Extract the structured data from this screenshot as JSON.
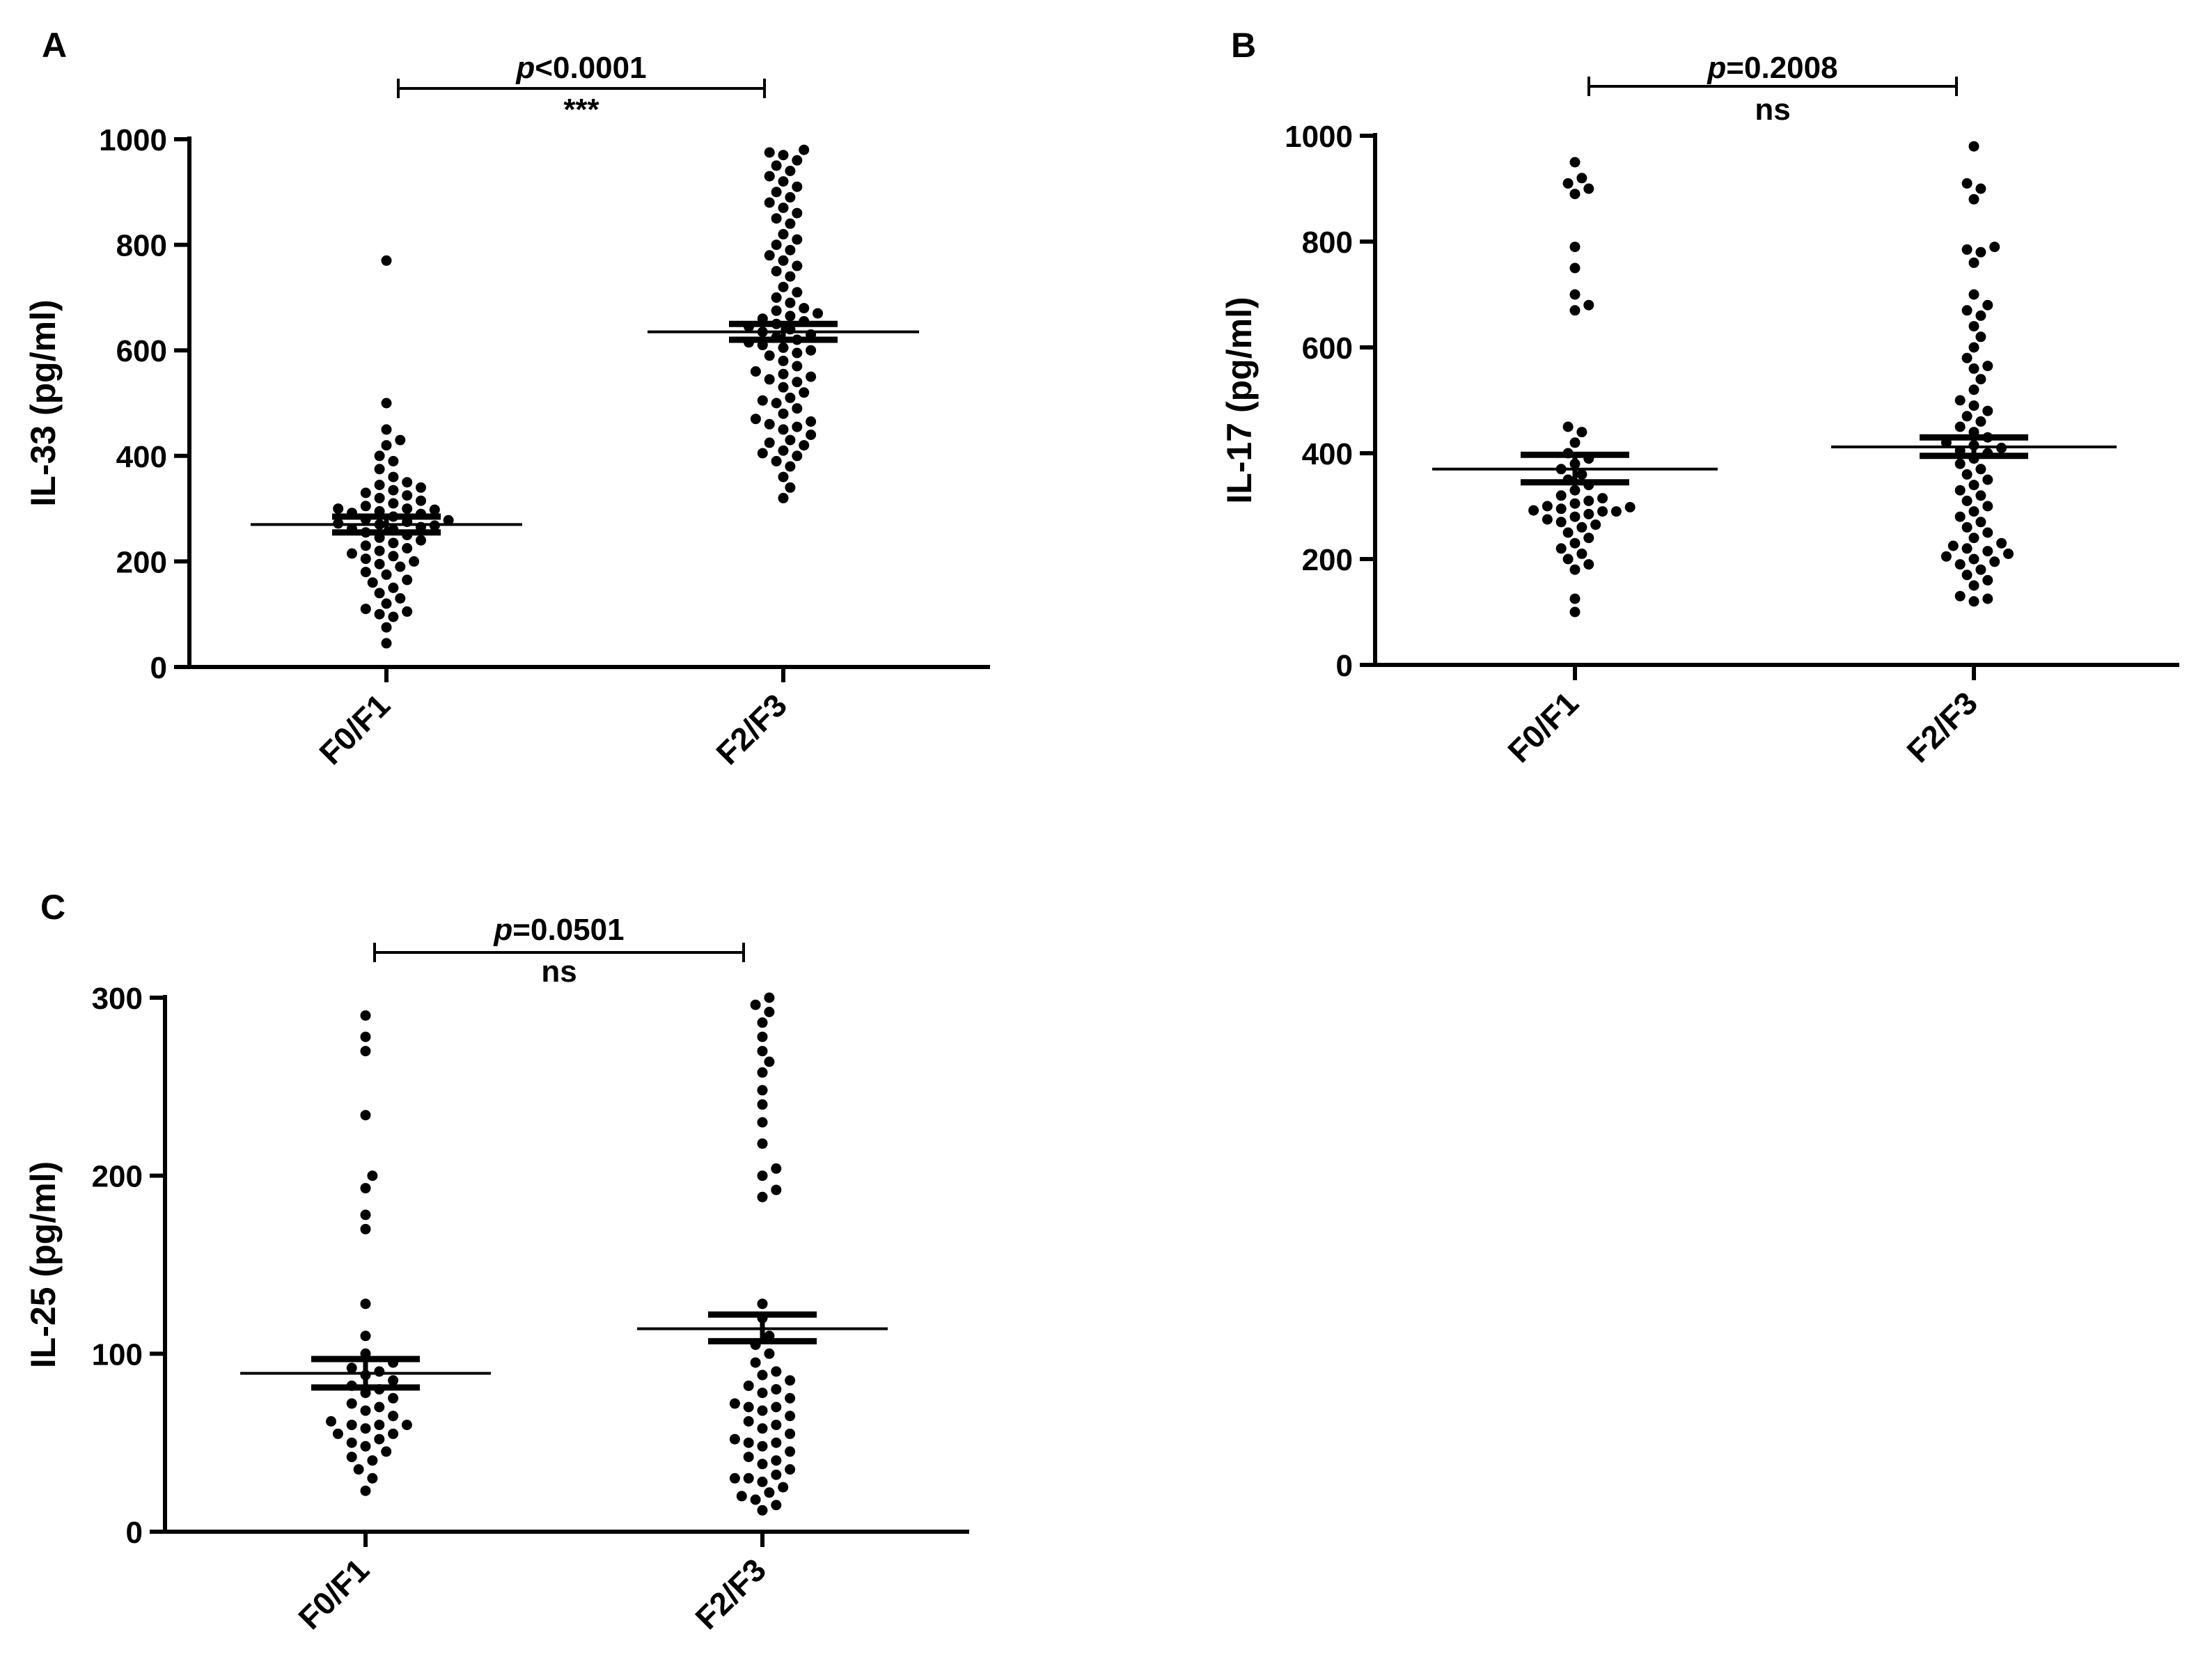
{
  "colors": {
    "ink": "#000000",
    "background": "#ffffff"
  },
  "chart_data": [
    {
      "panel": "A",
      "type": "scatter",
      "subtype": "dot-plot-with-mean-sem",
      "ylabel": "IL-33 (pg/ml)",
      "ylim": [
        0,
        1000
      ],
      "yticks": [
        0,
        200,
        400,
        600,
        800,
        1000
      ],
      "categories": [
        "F0/F1",
        "F2/F3"
      ],
      "series": [
        {
          "name": "F0/F1",
          "mean": 270,
          "sem_low": 255,
          "sem_high": 285,
          "values": [
            45,
            75,
            95,
            100,
            105,
            110,
            120,
            130,
            140,
            150,
            160,
            165,
            175,
            180,
            190,
            195,
            200,
            205,
            210,
            215,
            220,
            225,
            230,
            235,
            240,
            245,
            250,
            255,
            260,
            262,
            265,
            268,
            270,
            272,
            275,
            278,
            280,
            285,
            290,
            292,
            295,
            298,
            300,
            300,
            305,
            310,
            315,
            320,
            325,
            330,
            335,
            340,
            345,
            350,
            360,
            375,
            390,
            400,
            420,
            430,
            450,
            500,
            770
          ]
        },
        {
          "name": "F2/F3",
          "mean": 635,
          "sem_low": 620,
          "sem_high": 650,
          "values": [
            320,
            340,
            360,
            380,
            390,
            400,
            405,
            410,
            420,
            425,
            430,
            440,
            450,
            455,
            460,
            465,
            470,
            480,
            490,
            500,
            505,
            510,
            520,
            530,
            540,
            545,
            550,
            555,
            560,
            570,
            580,
            590,
            595,
            600,
            605,
            610,
            615,
            620,
            625,
            630,
            635,
            640,
            645,
            650,
            655,
            660,
            665,
            670,
            675,
            680,
            690,
            700,
            710,
            720,
            740,
            750,
            760,
            770,
            780,
            790,
            800,
            810,
            820,
            840,
            850,
            860,
            870,
            880,
            890,
            900,
            910,
            920,
            930,
            940,
            950,
            960,
            970,
            975,
            980
          ]
        }
      ],
      "comparison": {
        "p_label": "p",
        "p_value": "<0.0001",
        "significance": "***"
      }
    },
    {
      "panel": "B",
      "type": "scatter",
      "subtype": "dot-plot-with-mean-sem",
      "ylabel": "IL-17 (pg/ml)",
      "ylim": [
        0,
        1000
      ],
      "yticks": [
        0,
        200,
        400,
        600,
        800,
        1000
      ],
      "categories": [
        "F0/F1",
        "F2/F3"
      ],
      "series": [
        {
          "name": "F0/F1",
          "mean": 370,
          "sem_low": 345,
          "sem_high": 397,
          "values": [
            100,
            125,
            180,
            190,
            200,
            210,
            220,
            230,
            240,
            250,
            260,
            265,
            270,
            275,
            280,
            285,
            290,
            290,
            292,
            295,
            298,
            300,
            305,
            310,
            315,
            320,
            330,
            340,
            350,
            360,
            370,
            380,
            390,
            400,
            420,
            440,
            450,
            670,
            680,
            700,
            750,
            790,
            890,
            900,
            910,
            920,
            950
          ]
        },
        {
          "name": "F2/F3",
          "mean": 412,
          "sem_low": 395,
          "sem_high": 430,
          "values": [
            120,
            125,
            130,
            150,
            160,
            170,
            180,
            190,
            195,
            200,
            205,
            210,
            215,
            220,
            225,
            230,
            240,
            250,
            260,
            270,
            280,
            290,
            300,
            310,
            320,
            330,
            340,
            350,
            360,
            370,
            380,
            390,
            400,
            405,
            410,
            415,
            420,
            430,
            440,
            450,
            460,
            470,
            480,
            490,
            500,
            520,
            540,
            560,
            565,
            580,
            600,
            620,
            640,
            660,
            670,
            680,
            700,
            760,
            780,
            785,
            790,
            880,
            900,
            910,
            980
          ]
        }
      ],
      "comparison": {
        "p_label": "p",
        "p_value": "=0.2008",
        "significance": "ns"
      }
    },
    {
      "panel": "C",
      "type": "scatter",
      "subtype": "dot-plot-with-mean-sem",
      "ylabel": "IL-25 (pg/ml)",
      "ylim": [
        0,
        300
      ],
      "yticks": [
        0,
        100,
        200,
        300
      ],
      "categories": [
        "F0/F1",
        "F2/F3"
      ],
      "series": [
        {
          "name": "F0/F1",
          "mean": 89,
          "sem_low": 81,
          "sem_high": 97,
          "values": [
            23,
            30,
            35,
            40,
            42,
            45,
            48,
            50,
            52,
            55,
            55,
            58,
            60,
            60,
            60,
            62,
            65,
            68,
            70,
            72,
            75,
            78,
            80,
            82,
            85,
            88,
            90,
            92,
            95,
            100,
            110,
            128,
            170,
            178,
            193,
            200,
            234,
            270,
            278,
            290
          ]
        },
        {
          "name": "F2/F3",
          "mean": 114,
          "sem_low": 107,
          "sem_high": 122,
          "values": [
            12,
            15,
            18,
            20,
            22,
            25,
            28,
            30,
            30,
            32,
            35,
            38,
            40,
            42,
            45,
            48,
            50,
            50,
            52,
            55,
            58,
            60,
            62,
            65,
            68,
            70,
            70,
            72,
            75,
            78,
            80,
            82,
            85,
            88,
            90,
            95,
            100,
            105,
            110,
            120,
            128,
            188,
            192,
            200,
            204,
            218,
            230,
            240,
            248,
            258,
            264,
            270,
            278,
            286,
            292,
            296,
            300
          ]
        }
      ],
      "comparison": {
        "p_label": "p",
        "p_value": "=0.0501",
        "significance": "ns"
      }
    }
  ]
}
